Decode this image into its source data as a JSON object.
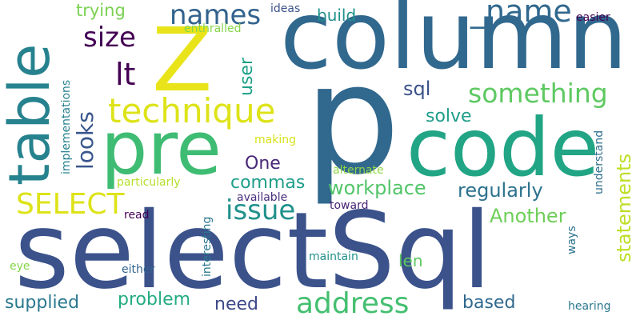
{
  "words": [
    {
      "text": "selectSql",
      "color": "#3b528b"
    },
    {
      "text": "p",
      "color": "#31688e"
    },
    {
      "text": "column",
      "color": "#31688e"
    },
    {
      "text": "code",
      "color": "#21a585"
    },
    {
      "text": "pre",
      "color": "#3fbc73"
    },
    {
      "text": "Z",
      "color": "#e8e419"
    },
    {
      "text": "table",
      "color": "#26828e"
    },
    {
      "text": "technique",
      "color": "#dde318"
    },
    {
      "text": "address",
      "color": "#44bf70"
    },
    {
      "text": "_name",
      "color": "#31688e"
    },
    {
      "text": "something",
      "color": "#5ec962"
    },
    {
      "text": "SELECT",
      "color": "#dde318"
    },
    {
      "text": "issue",
      "color": "#21918c"
    },
    {
      "text": "names",
      "color": "#33638d"
    },
    {
      "text": "size",
      "color": "#440154"
    },
    {
      "text": "lt",
      "color": "#440154"
    },
    {
      "text": "looks",
      "color": "#39568c"
    },
    {
      "text": "statements",
      "color": "#bddf26"
    },
    {
      "text": "workplace",
      "color": "#52c569"
    },
    {
      "text": "regularly",
      "color": "#2c728e"
    },
    {
      "text": "Another",
      "color": "#6ece58"
    },
    {
      "text": "solve",
      "color": "#1f9e89"
    },
    {
      "text": "sql",
      "color": "#3b528b"
    },
    {
      "text": "build",
      "color": "#21918c"
    },
    {
      "text": "user",
      "color": "#1fa188"
    },
    {
      "text": "trying",
      "color": "#7ad151"
    },
    {
      "text": "One",
      "color": "#482878"
    },
    {
      "text": "commas",
      "color": "#1f9e89"
    },
    {
      "text": "problem",
      "color": "#25ac82"
    },
    {
      "text": "need",
      "color": "#3e4989"
    },
    {
      "text": "supplied",
      "color": "#2a788e"
    },
    {
      "text": "based",
      "color": "#31688e"
    },
    {
      "text": "len",
      "color": "#5ec962"
    },
    {
      "text": "ideas",
      "color": "#3b528b"
    },
    {
      "text": "easier",
      "color": "#440154"
    },
    {
      "text": "enthralled",
      "color": "#86d549"
    },
    {
      "text": "implementations",
      "color": "#26828e"
    },
    {
      "text": "making",
      "color": "#d8e219"
    },
    {
      "text": "understand",
      "color": "#2e6f8e"
    },
    {
      "text": "particularly",
      "color": "#b5de2b"
    },
    {
      "text": "alternate",
      "color": "#8fd744"
    },
    {
      "text": "available",
      "color": "#472f7d"
    },
    {
      "text": "toward",
      "color": "#482475"
    },
    {
      "text": "read",
      "color": "#440154"
    },
    {
      "text": "interesting",
      "color": "#2a788e"
    },
    {
      "text": "maintain",
      "color": "#21918c"
    },
    {
      "text": "ways",
      "color": "#2c728e"
    },
    {
      "text": "either",
      "color": "#33638d"
    },
    {
      "text": "eye",
      "color": "#86d549"
    },
    {
      "text": "hearing",
      "color": "#2a788e"
    }
  ]
}
